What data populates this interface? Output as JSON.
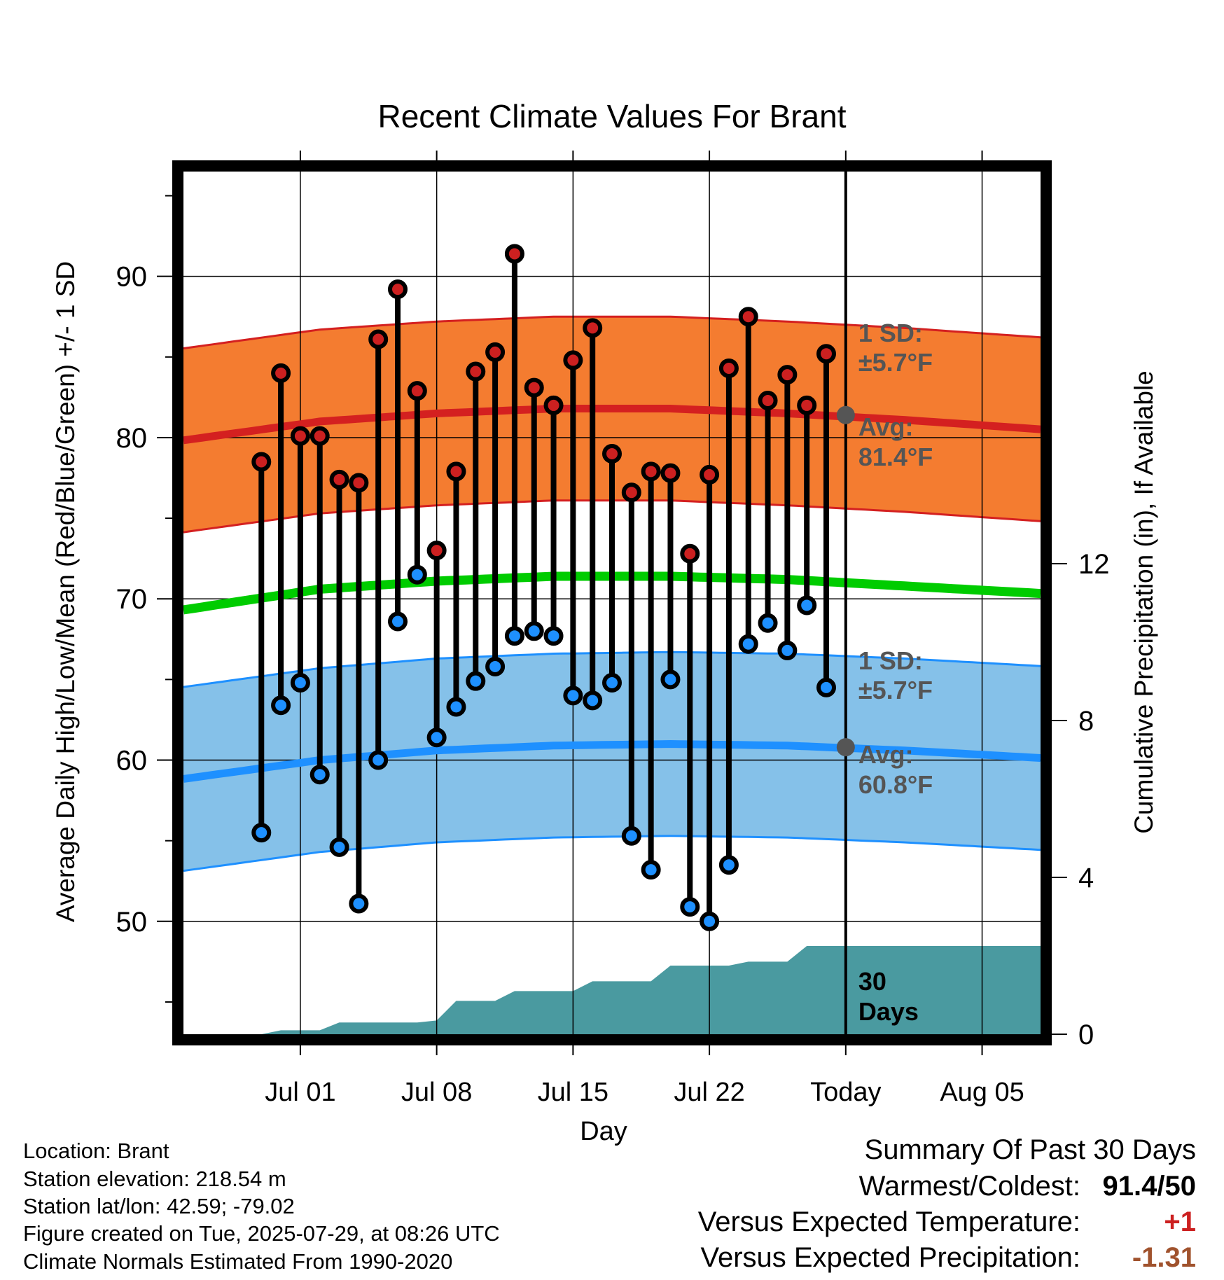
{
  "chart_data": {
    "type": "line",
    "title": "Recent Climate Values For Brant",
    "xlabel": "Day",
    "ylabel": "Average Daily High/Low/Mean (Red/Blue/Green) +/- 1 SD",
    "y2label": "Cumulative Precipitation (in), If Available",
    "ylim": [
      43,
      96.5
    ],
    "y2lim": [
      0,
      22
    ],
    "x_range_days": [
      -3.0,
      41.0
    ],
    "x_origin": "Jun 28",
    "xtick_labels": [
      {
        "day": 3,
        "label": "Jul 01"
      },
      {
        "day": 10,
        "label": "Jul 08"
      },
      {
        "day": 17,
        "label": "Jul 15"
      },
      {
        "day": 24,
        "label": "Jul 22"
      },
      {
        "day": 31,
        "label": "Today"
      },
      {
        "day": 38,
        "label": "Aug 05"
      }
    ],
    "yticks": [
      50,
      60,
      70,
      80,
      90
    ],
    "y2ticks": [
      0,
      4,
      8,
      12
    ],
    "today_day": 31,
    "grid": true,
    "days": [
      1,
      2,
      3,
      4,
      5,
      6,
      7,
      8,
      9,
      10,
      11,
      12,
      13,
      14,
      15,
      16,
      17,
      18,
      19,
      20,
      21,
      22,
      23,
      24,
      25,
      26,
      27,
      28,
      29,
      30
    ],
    "series": [
      {
        "name": "High",
        "color": "#cc2020",
        "values": [
          78.5,
          84,
          80.1,
          80.1,
          77.4,
          77.2,
          86.1,
          89.2,
          82.9,
          73,
          77.9,
          84.1,
          85.3,
          91.4,
          83.1,
          82,
          84.8,
          86.8,
          79,
          76.6,
          77.9,
          77.8,
          72.8,
          77.7,
          84.3,
          87.5,
          82.3,
          83.9,
          82,
          85.2
        ]
      },
      {
        "name": "Low",
        "color": "#1e90ff",
        "values": [
          55.5,
          63.4,
          64.8,
          59.1,
          54.6,
          51.1,
          60,
          68.6,
          71.5,
          61.4,
          63.3,
          64.9,
          65.8,
          67.7,
          68,
          67.7,
          64,
          63.7,
          64.8,
          55.3,
          53.2,
          65,
          50.9,
          50,
          53.5,
          67.2,
          68.5,
          66.8,
          69.6,
          64.5
        ]
      },
      {
        "name": "Normal High",
        "color": "#cc2020",
        "x": [
          -2,
          4,
          10,
          16,
          22,
          28,
          34,
          40
        ],
        "values": [
          80.0,
          81.0,
          81.5,
          81.8,
          81.8,
          81.5,
          81.1,
          80.6
        ]
      },
      {
        "name": "Normal Low",
        "color": "#1e90ff",
        "x": [
          -2,
          4,
          10,
          16,
          22,
          28,
          34,
          40
        ],
        "values": [
          59.0,
          60.0,
          60.6,
          60.9,
          61.0,
          60.9,
          60.6,
          60.2
        ]
      },
      {
        "name": "Normal Mean",
        "color": "#00cc00",
        "x": [
          -2,
          4,
          10,
          16,
          22,
          28,
          34,
          40
        ],
        "values": [
          69.5,
          70.6,
          71.1,
          71.4,
          71.4,
          71.2,
          70.8,
          70.4
        ]
      }
    ],
    "sd_band": 5.7,
    "precip_cumulative": {
      "x": [
        -2,
        -1,
        0,
        1,
        2,
        3,
        4,
        5,
        6,
        7,
        8,
        9,
        10,
        11,
        12,
        13,
        14,
        15,
        16,
        17,
        18,
        19,
        20,
        21,
        22,
        23,
        24,
        25,
        26,
        27,
        28,
        29,
        30,
        31,
        41
      ],
      "values": [
        0,
        0,
        0,
        0,
        0.1,
        0.1,
        0.1,
        0.3,
        0.3,
        0.3,
        0.3,
        0.3,
        0.35,
        0.85,
        0.85,
        0.85,
        1.1,
        1.1,
        1.1,
        1.1,
        1.35,
        1.35,
        1.35,
        1.35,
        1.75,
        1.75,
        1.75,
        1.75,
        1.85,
        1.85,
        1.85,
        2.25,
        2.25,
        2.25,
        2.25
      ]
    },
    "annotations": {
      "high_sd": [
        "1 SD:",
        "±5.7°F"
      ],
      "high_avg": [
        "Avg:",
        "81.4°F"
      ],
      "low_sd": [
        "1 SD:",
        "±5.7°F"
      ],
      "low_avg": [
        "Avg:",
        "60.8°F"
      ],
      "precip_days": [
        "30",
        "Days"
      ]
    },
    "avg_today_high": 81.4,
    "avg_today_low": 60.8
  },
  "info": {
    "location": "Location: Brant",
    "elevation": "Station elevation: 218.54 m",
    "latlon": "Station lat/lon: 42.59; -79.02",
    "created": "Figure created on Tue, 2025-07-29, at 08:26 UTC",
    "normals": "Climate Normals Estimated From 1990-2020"
  },
  "summary": {
    "title": "Summary Of Past 30 Days",
    "warmest_coldest_label": "Warmest/Coldest:",
    "warmest_coldest_value": "91.4/50",
    "temp_label": "Versus Expected Temperature:",
    "temp_value": "+1",
    "temp_color": "#cc2020",
    "precip_label": "Versus Expected Precipitation:",
    "precip_value": "-1.31",
    "precip_color": "#a0522d"
  }
}
